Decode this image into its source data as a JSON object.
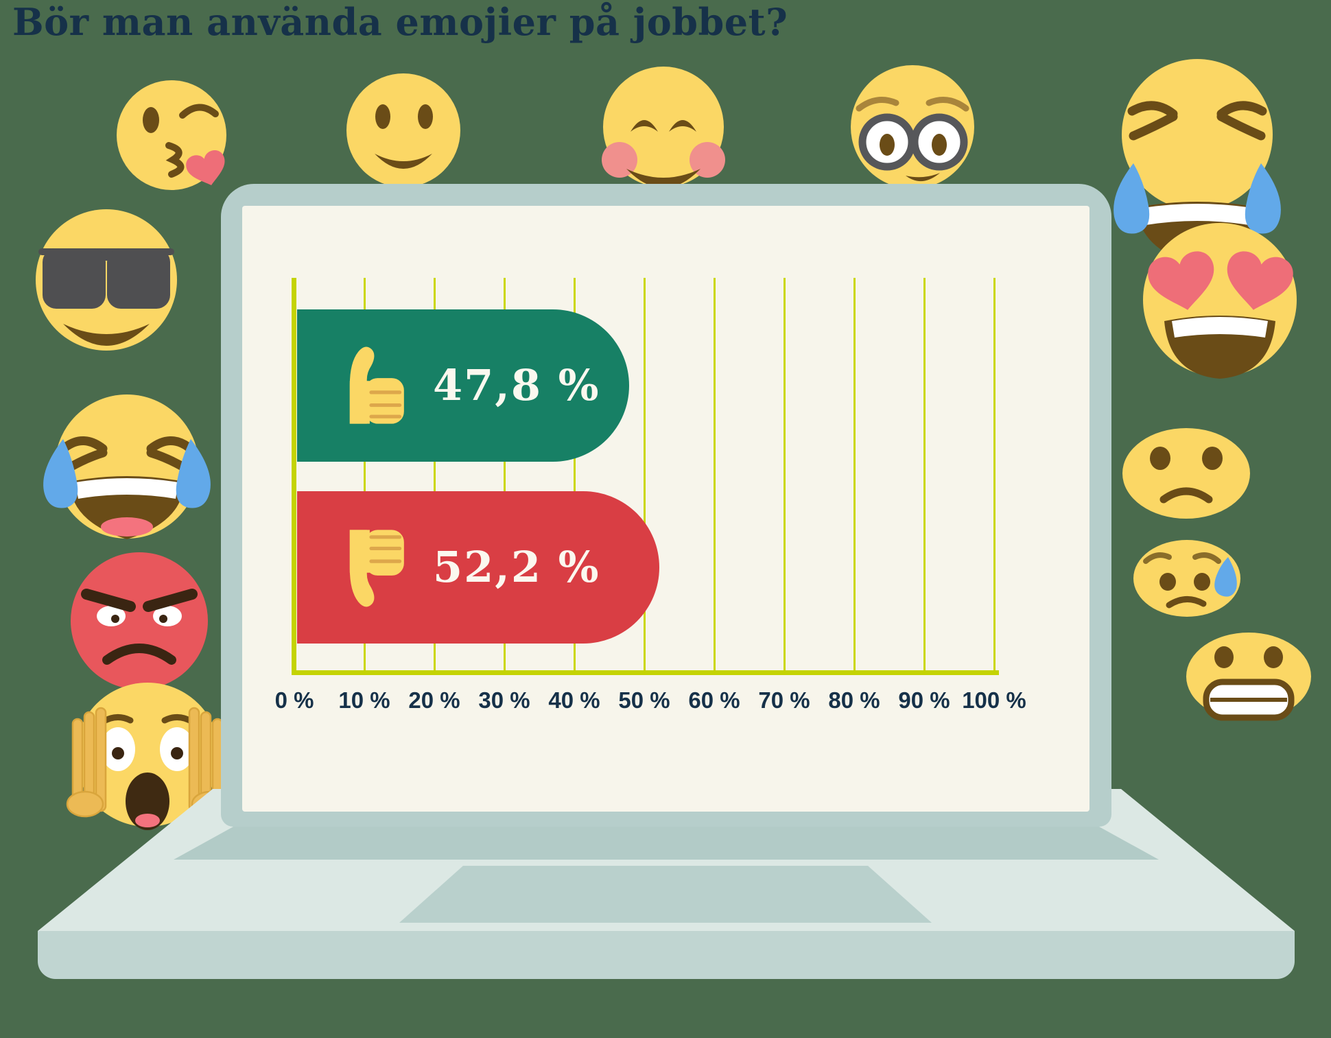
{
  "title": "Bör man använda emojier på jobbet?",
  "chart_data": {
    "type": "bar",
    "orientation": "horizontal",
    "title": "Bör man använda emojier på jobbet?",
    "categories": [
      "thumbs-up (ja)",
      "thumbs-down (nej)"
    ],
    "values": [
      47.8,
      52.2
    ],
    "value_labels": [
      "47,8 %",
      "52,2 %"
    ],
    "bar_colors": [
      "#178065",
      "#d93e44"
    ],
    "xlim": [
      0,
      100
    ],
    "x_tick_labels": [
      "0 %",
      "10 %",
      "20 %",
      "30 %",
      "40 %",
      "50 %",
      "60 %",
      "70 %",
      "80 %",
      "90 %",
      "100 %"
    ],
    "grid": true,
    "legend": "none",
    "axis_color": "#c4d303",
    "value_text_color": "#fbf8ef"
  },
  "icons": [
    "face-blowing-kiss-emoji-icon",
    "slightly-smiling-face-emoji-icon",
    "smiling-face-rosy-cheeks-emoji-icon",
    "nerd-face-glasses-emoji-icon",
    "face-with-tears-of-joy-right-emoji-icon",
    "smiling-face-sunglasses-emoji-icon",
    "smiling-face-heart-eyes-emoji-icon",
    "face-with-tears-of-joy-left-emoji-icon",
    "slightly-frowning-face-emoji-icon",
    "angry-red-face-emoji-icon",
    "sad-face-with-sweat-emoji-icon",
    "screaming-face-emoji-icon",
    "grimacing-face-emoji-icon",
    "thumbs-up-icon",
    "thumbs-down-icon"
  ],
  "colors": {
    "background": "#4a6b4d",
    "title_text": "#163149",
    "tick_text": "#163149",
    "laptop_frame": "#b6cecb",
    "laptop_screen": "#f7f5eb",
    "laptop_deck": "#dce8e4",
    "laptop_base": "#c0d5d1",
    "emoji_yellow": "#fbd765",
    "emoji_brown": "#6a4c17",
    "tear_blue": "#62a9e9",
    "heart_red": "#ee6e78",
    "angry_red": "#e8575c"
  }
}
